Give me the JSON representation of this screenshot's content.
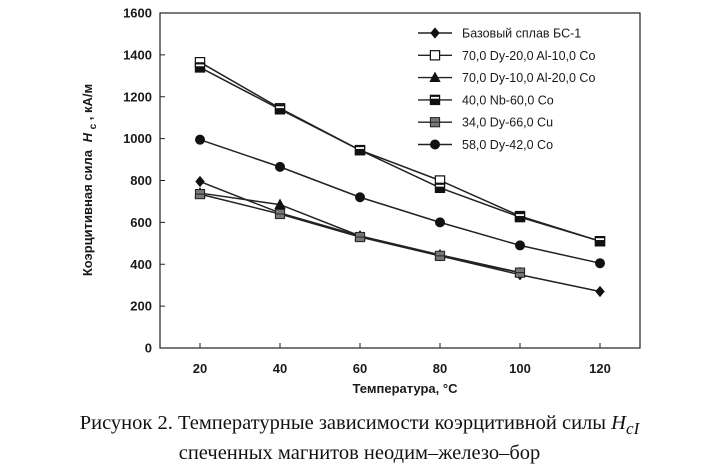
{
  "chart_data": {
    "type": "line",
    "xlabel": "Температура, °C",
    "ylabel_main": "Коэрцитивная сила",
    "ylabel_sym": "H",
    "ylabel_sub": "c",
    "ylabel_unit": ", кА/м",
    "x_ticks": [
      20,
      40,
      60,
      80,
      100,
      120
    ],
    "y_ticks": [
      0,
      200,
      400,
      600,
      800,
      1000,
      1200,
      1400,
      1600
    ],
    "xlim": [
      10,
      130
    ],
    "ylim": [
      0,
      1600
    ],
    "legend_position": "top-right",
    "series": [
      {
        "name": "Базовый сплав БС-1",
        "marker": "diamond-filled",
        "x": [
          20,
          40,
          60,
          80,
          100,
          120
        ],
        "y": [
          795,
          645,
          535,
          440,
          350,
          270
        ]
      },
      {
        "name": "70,0 Dy-20,0 Al-10,0 Co",
        "marker": "square-open",
        "x": [
          20,
          40,
          60,
          80,
          100,
          120
        ],
        "y": [
          1365,
          1145,
          945,
          800,
          630,
          510
        ]
      },
      {
        "name": "70,0 Dy-10,0 Al-20,0 Co",
        "marker": "triangle-filled",
        "x": [
          20,
          40,
          60,
          80,
          100
        ],
        "y": [
          740,
          685,
          535,
          445,
          360
        ]
      },
      {
        "name": "40,0 Nb-60,0 Co",
        "marker": "square-halffilled",
        "x": [
          20,
          40,
          60,
          80,
          100,
          120
        ],
        "y": [
          1340,
          1140,
          945,
          765,
          625,
          510
        ]
      },
      {
        "name": "34,0 Dy-66,0 Cu",
        "marker": "square-gray",
        "x": [
          20,
          40,
          60,
          80,
          100
        ],
        "y": [
          735,
          640,
          530,
          440,
          360
        ]
      },
      {
        "name": "58,0 Dy-42,0 Co",
        "marker": "circle-filled",
        "x": [
          20,
          40,
          60,
          80,
          100,
          120
        ],
        "y": [
          995,
          865,
          720,
          600,
          490,
          405
        ]
      }
    ]
  },
  "caption": {
    "line1_prefix": "Рисунок 2. Температурные зависимости коэрцитивной силы ",
    "line1_var": "H",
    "line1_sub": "cI",
    "line2": "спеченных магнитов неодим–железо–бор"
  }
}
